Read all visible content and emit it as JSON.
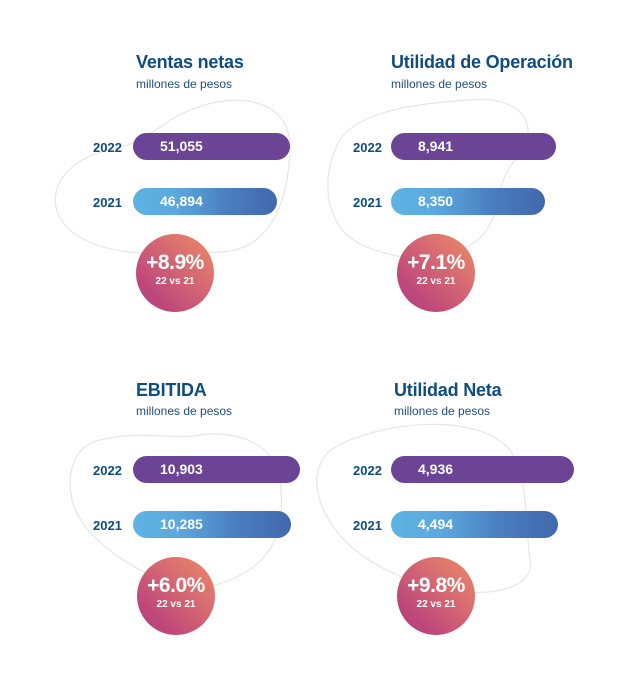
{
  "chart_data": {
    "type": "bar",
    "orientation": "horizontal",
    "unit": "millones de pesos",
    "categories": [
      "2022",
      "2021"
    ],
    "charts": [
      {
        "title": "Ventas netas",
        "subtitle": "millones de pesos",
        "series": [
          {
            "year": "2022",
            "value": 51055,
            "label": "51,055"
          },
          {
            "year": "2021",
            "value": 46894,
            "label": "46,894"
          }
        ],
        "change": "+8.9%",
        "change_caption": "22 vs 21"
      },
      {
        "title": "Utilidad de Operación",
        "subtitle": "millones de pesos",
        "series": [
          {
            "year": "2022",
            "value": 8941,
            "label": "8,941"
          },
          {
            "year": "2021",
            "value": 8350,
            "label": "8,350"
          }
        ],
        "change": "+7.1%",
        "change_caption": "22 vs 21"
      },
      {
        "title": "EBITIDA",
        "subtitle": "millones de pesos",
        "series": [
          {
            "year": "2022",
            "value": 10903,
            "label": "10,903"
          },
          {
            "year": "2021",
            "value": 10285,
            "label": "10,285"
          }
        ],
        "change": "+6.0%",
        "change_caption": "22 vs 21"
      },
      {
        "title": "Utilidad Neta",
        "subtitle": "millones de pesos",
        "series": [
          {
            "year": "2022",
            "value": 4936,
            "label": "4,936"
          },
          {
            "year": "2021",
            "value": 4494,
            "label": "4,494"
          }
        ],
        "change": "+9.8%",
        "change_caption": "22 vs 21"
      }
    ]
  },
  "colors": {
    "title": "#0f4c81",
    "bar_2022": "#6b4495",
    "bar_2021_start": "#5db4e3",
    "bar_2021_end": "#4168ac",
    "badge_start": "#ed8b66",
    "badge_end": "#b23c7c",
    "blob_stroke": "#e6e6e6"
  }
}
